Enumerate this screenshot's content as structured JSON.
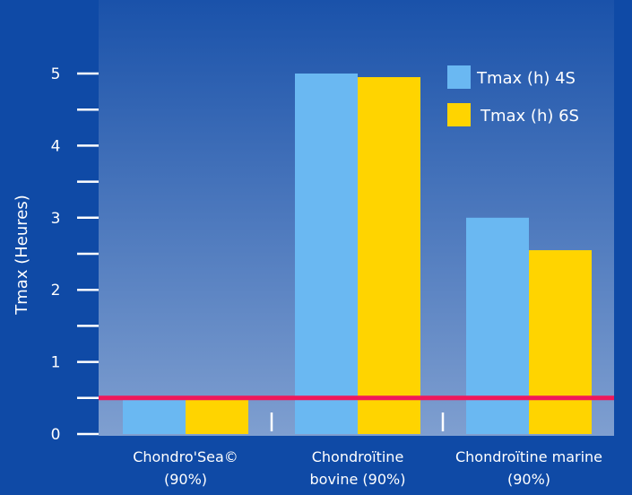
{
  "colors": {
    "page_background": "#0f4aa6",
    "plot_top": "#1a52aa",
    "plot_bottom": "#7f9fd0",
    "series_4s": "#6ab8f2",
    "series_6s": "#ffd400",
    "threshold_line": "#f0185a",
    "axis": "#ffffff"
  },
  "chart_data": {
    "type": "bar",
    "title": "",
    "xlabel": "",
    "ylabel": "Tmax (Heures)",
    "ylim": [
      0,
      5.5
    ],
    "y_major_ticks": [
      0,
      1,
      2,
      3,
      4,
      5
    ],
    "y_minor_ticks": [
      0.5,
      1.5,
      2.5,
      3.5,
      4.5
    ],
    "grid": false,
    "legend_position": "top-right",
    "categories": [
      {
        "line1": "Chondro'Sea©",
        "line2": "(90%)"
      },
      {
        "line1": "Chondroïtine",
        "line2": "bovine (90%)"
      },
      {
        "line1": "Chondroïtine marine",
        "line2": "(90%)"
      }
    ],
    "series": [
      {
        "name": "Tmax (h) 4S",
        "values": [
          0.5,
          5.0,
          3.0
        ]
      },
      {
        "name": "Tmax (h) 6S",
        "values": [
          0.5,
          4.95,
          2.55
        ]
      }
    ],
    "reference_line": {
      "y": 0.5
    }
  }
}
